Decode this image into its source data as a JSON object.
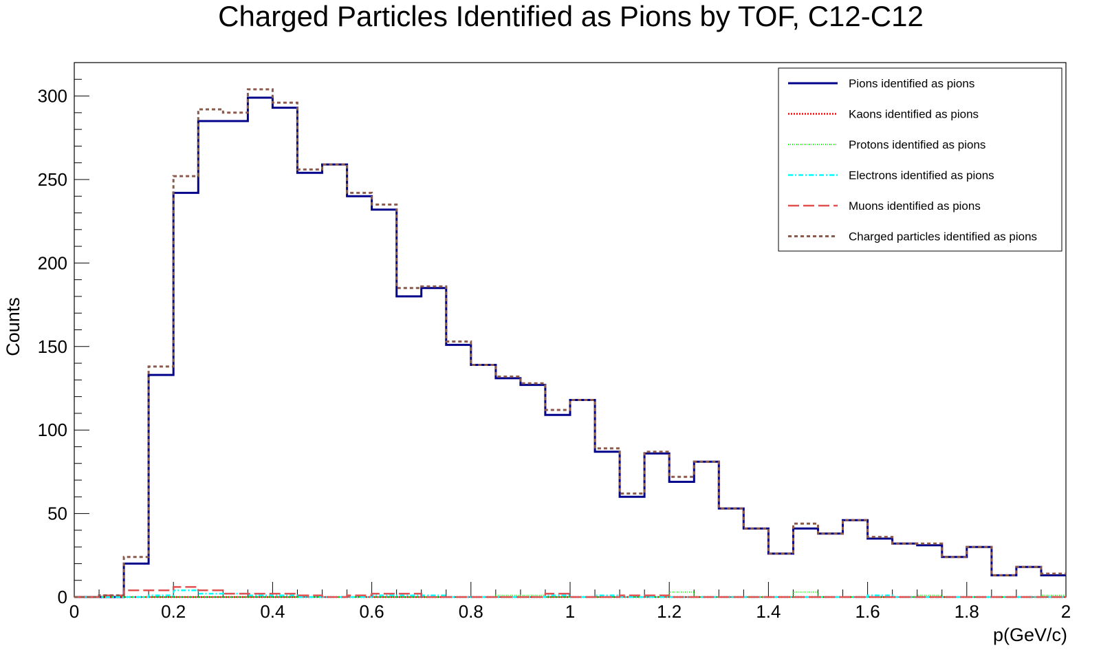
{
  "chart_data": {
    "type": "histogram",
    "title": "Charged Particles Identified as Pions by TOF, C12-C12",
    "xlabel": "p(GeV/c)",
    "ylabel": "Counts",
    "xlim": [
      0,
      2
    ],
    "ylim": [
      0,
      320
    ],
    "bin_edges": [
      0,
      0.05,
      0.1,
      0.15,
      0.2,
      0.25,
      0.3,
      0.35,
      0.4,
      0.45,
      0.5,
      0.55,
      0.6,
      0.65,
      0.7,
      0.75,
      0.8,
      0.85,
      0.9,
      0.95,
      1.0,
      1.05,
      1.1,
      1.15,
      1.2,
      1.25,
      1.3,
      1.35,
      1.4,
      1.45,
      1.5,
      1.55,
      1.6,
      1.65,
      1.7,
      1.75,
      1.8,
      1.85,
      1.9,
      1.95,
      2.0
    ],
    "x_ticks": [
      "0",
      "0.2",
      "0.4",
      "0.6",
      "0.8",
      "1",
      "1.2",
      "1.4",
      "1.6",
      "1.8",
      "2"
    ],
    "y_ticks": [
      "0",
      "50",
      "100",
      "150",
      "200",
      "250",
      "300"
    ],
    "legend_position": "top-right",
    "grid": false,
    "series": [
      {
        "name": "Pions identified as pions",
        "color": "#00008b",
        "dash": "solid",
        "values": [
          0,
          0,
          20,
          133,
          242,
          285,
          285,
          299,
          293,
          254,
          259,
          240,
          232,
          180,
          185,
          151,
          139,
          131,
          127,
          109,
          118,
          87,
          60,
          86,
          69,
          81,
          53,
          41,
          26,
          41,
          38,
          46,
          35,
          32,
          31,
          24,
          30,
          13,
          18,
          13
        ]
      },
      {
        "name": "Kaons identified as pions",
        "color": "#ff0000",
        "dash": "dot",
        "values": [
          0,
          0,
          0,
          0,
          0,
          0,
          0,
          0,
          0,
          0,
          0,
          0,
          0,
          0,
          0,
          0,
          0,
          0,
          0,
          0,
          0,
          0,
          0,
          0,
          0,
          0,
          0,
          0,
          0,
          0,
          0,
          0,
          0,
          0,
          0,
          0,
          0,
          0,
          0,
          0
        ]
      },
      {
        "name": "Protons identified as pions",
        "color": "#00ff00",
        "dash": "fine-dot",
        "values": [
          0,
          0,
          0,
          0,
          0,
          0,
          0,
          0,
          0,
          0,
          0,
          0,
          0,
          0,
          0,
          0,
          0,
          1,
          1,
          0,
          0,
          0,
          0,
          0,
          3,
          0,
          0,
          0,
          0,
          3,
          0,
          0,
          0,
          0,
          1,
          0,
          0,
          0,
          0,
          1
        ]
      },
      {
        "name": "Electrons identified as pions",
        "color": "#00ffff",
        "dash": "dash-dot",
        "values": [
          0,
          0,
          0,
          1,
          4,
          2,
          2,
          1,
          1,
          0,
          0,
          0,
          1,
          1,
          1,
          0,
          0,
          0,
          0,
          1,
          0,
          1,
          0,
          0,
          0,
          0,
          0,
          0,
          0,
          0,
          0,
          0,
          1,
          0,
          0,
          0,
          0,
          0,
          0,
          0
        ]
      },
      {
        "name": "Muons identified as pions",
        "color": "#e05050",
        "dash": "long-dash",
        "values": [
          0,
          1,
          4,
          4,
          6,
          4,
          2,
          2,
          2,
          1,
          0,
          1,
          2,
          2,
          0,
          0,
          0,
          0,
          0,
          2,
          0,
          0,
          1,
          1,
          0,
          0,
          0,
          0,
          0,
          0,
          0,
          0,
          0,
          0,
          0,
          0,
          0,
          0,
          0,
          0
        ]
      },
      {
        "name": "Charged particles identified as pions",
        "color": "#8b5a4a",
        "dash": "short-dash",
        "values": [
          0,
          1,
          24,
          138,
          252,
          292,
          290,
          304,
          296,
          256,
          259,
          242,
          235,
          185,
          186,
          153,
          139,
          132,
          128,
          112,
          118,
          89,
          62,
          87,
          72,
          81,
          53,
          41,
          26,
          44,
          38,
          46,
          36,
          32,
          32,
          24,
          30,
          13,
          18,
          14
        ]
      }
    ]
  }
}
